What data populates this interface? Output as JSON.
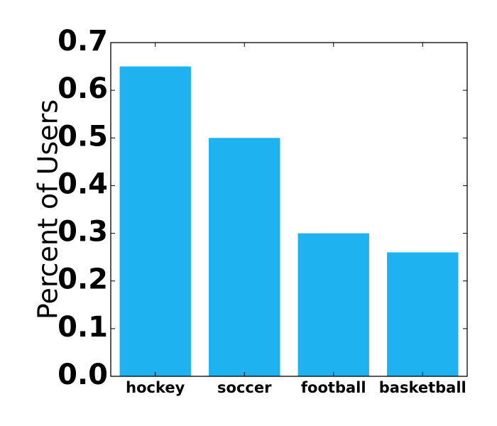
{
  "chart_data": {
    "type": "bar",
    "categories": [
      "hockey",
      "soccer",
      "football",
      "basketball"
    ],
    "values": [
      0.65,
      0.5,
      0.3,
      0.26
    ],
    "title": "",
    "xlabel": "",
    "ylabel": "Percent of Users",
    "ylim": [
      0.0,
      0.7
    ],
    "yticks": [
      "0.0",
      "0.1",
      "0.2",
      "0.3",
      "0.4",
      "0.5",
      "0.6",
      "0.7"
    ],
    "bar_color": "#1fb2f0",
    "grid": false,
    "legend": "none"
  }
}
